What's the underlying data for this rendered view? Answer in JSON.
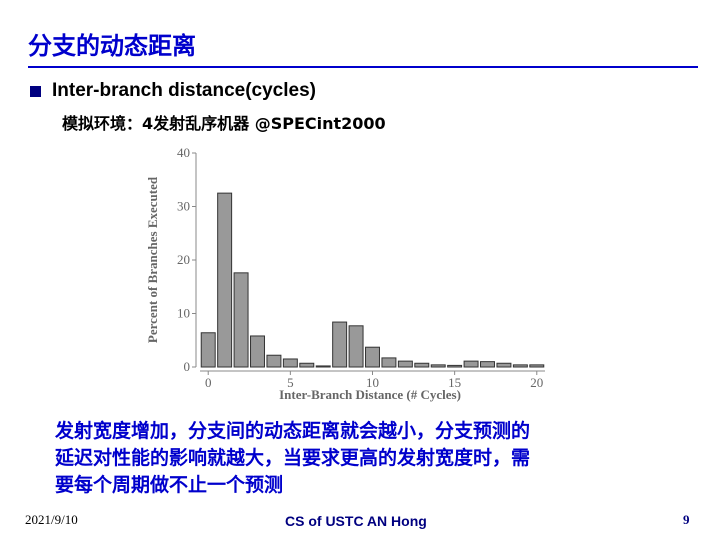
{
  "slide": {
    "title": "分支的动态距离",
    "bullet": "Inter-branch distance(cycles)",
    "sub": "模拟环境：4发射乱序机器 @SPECint2000",
    "body": [
      "发射宽度增加，分支间的动态距离就会越小，分支预测的",
      "延迟对性能的影响就越大，当要求更高的发射宽度时，需",
      "要每个周期做不止一个预测"
    ],
    "footer": {
      "date": "2021/9/10",
      "center": "CS of USTC AN Hong",
      "page": "9"
    }
  },
  "chart_data": {
    "type": "bar",
    "xlabel": "Inter-Branch Distance (# Cycles)",
    "ylabel": "Percent of Branches Executed",
    "x": [
      0,
      1,
      2,
      3,
      4,
      5,
      6,
      7,
      8,
      9,
      10,
      11,
      12,
      13,
      14,
      15,
      16,
      17,
      18,
      19,
      20
    ],
    "values": [
      6.4,
      32.5,
      17.6,
      5.8,
      2.2,
      1.5,
      0.7,
      0.2,
      8.4,
      7.7,
      3.7,
      1.7,
      1.1,
      0.7,
      0.4,
      0.3,
      1.1,
      1.0,
      0.7,
      0.4,
      0.4
    ],
    "color": "#999999",
    "xlim": [
      -0.5,
      20.5
    ],
    "ylim": [
      0,
      40
    ],
    "xticks": [
      0,
      5,
      10,
      15,
      20
    ],
    "yticks": [
      0,
      10,
      20,
      30,
      40
    ]
  }
}
